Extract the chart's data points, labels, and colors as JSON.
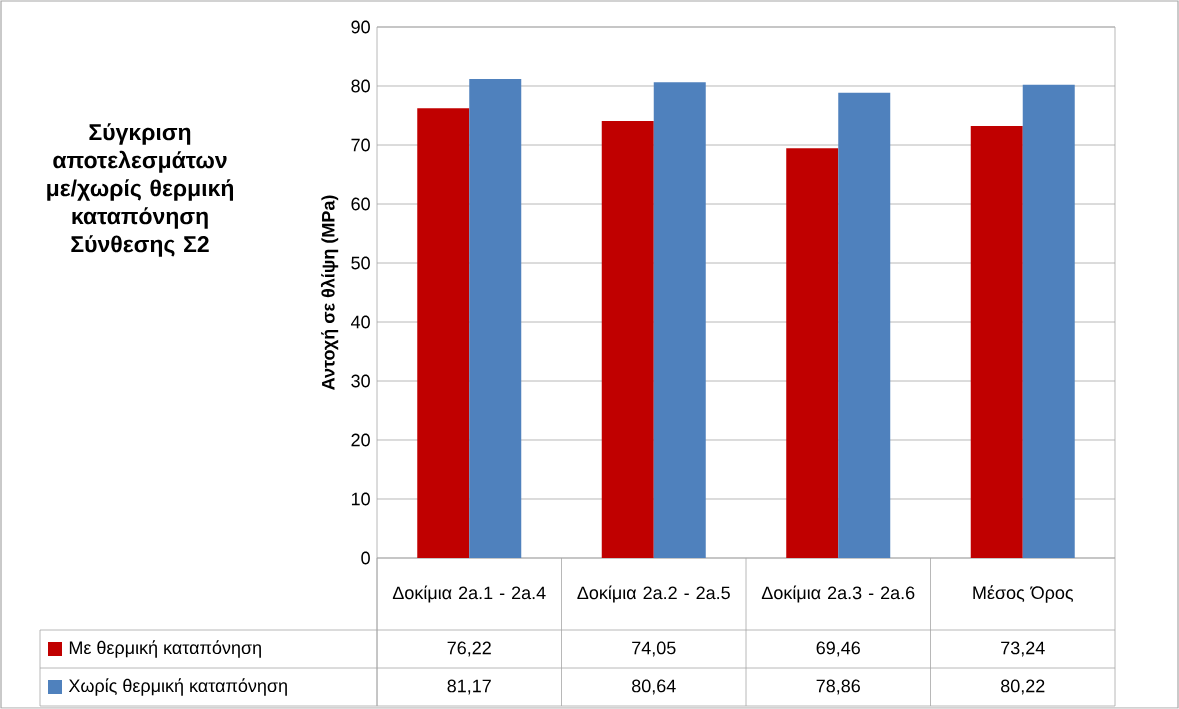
{
  "chart_data": {
    "type": "bar",
    "title": "Σύγκριση αποτελεσμάτων με/χωρίς θερμική καταπόνηση Σύνθεσης Σ2",
    "ylabel": "Αντοχή σε θλίψη (MPa)",
    "categories": [
      "Δοκίμια 2a.1 - 2a.4",
      "Δοκίμια 2a.2 - 2a.5",
      "Δοκίμια 2a.3 - 2a.6",
      "Μέσος Όρος"
    ],
    "series": [
      {
        "name": "Με θερμική καταπόνηση",
        "color": "#c00000",
        "values": [
          76.22,
          74.05,
          69.46,
          73.24
        ],
        "value_labels": [
          "76,22",
          "74,05",
          "69,46",
          "73,24"
        ]
      },
      {
        "name": "Χωρίς θερμική καταπόνηση",
        "color": "#4f81bd",
        "values": [
          81.17,
          80.64,
          78.86,
          80.22
        ],
        "value_labels": [
          "81,17",
          "80,64",
          "78,86",
          "80,22"
        ]
      }
    ],
    "ylim": [
      0,
      90
    ],
    "yticks": [
      0,
      10,
      20,
      30,
      40,
      50,
      60,
      70,
      80,
      90
    ],
    "grid": "y",
    "legend": "bottom left"
  }
}
